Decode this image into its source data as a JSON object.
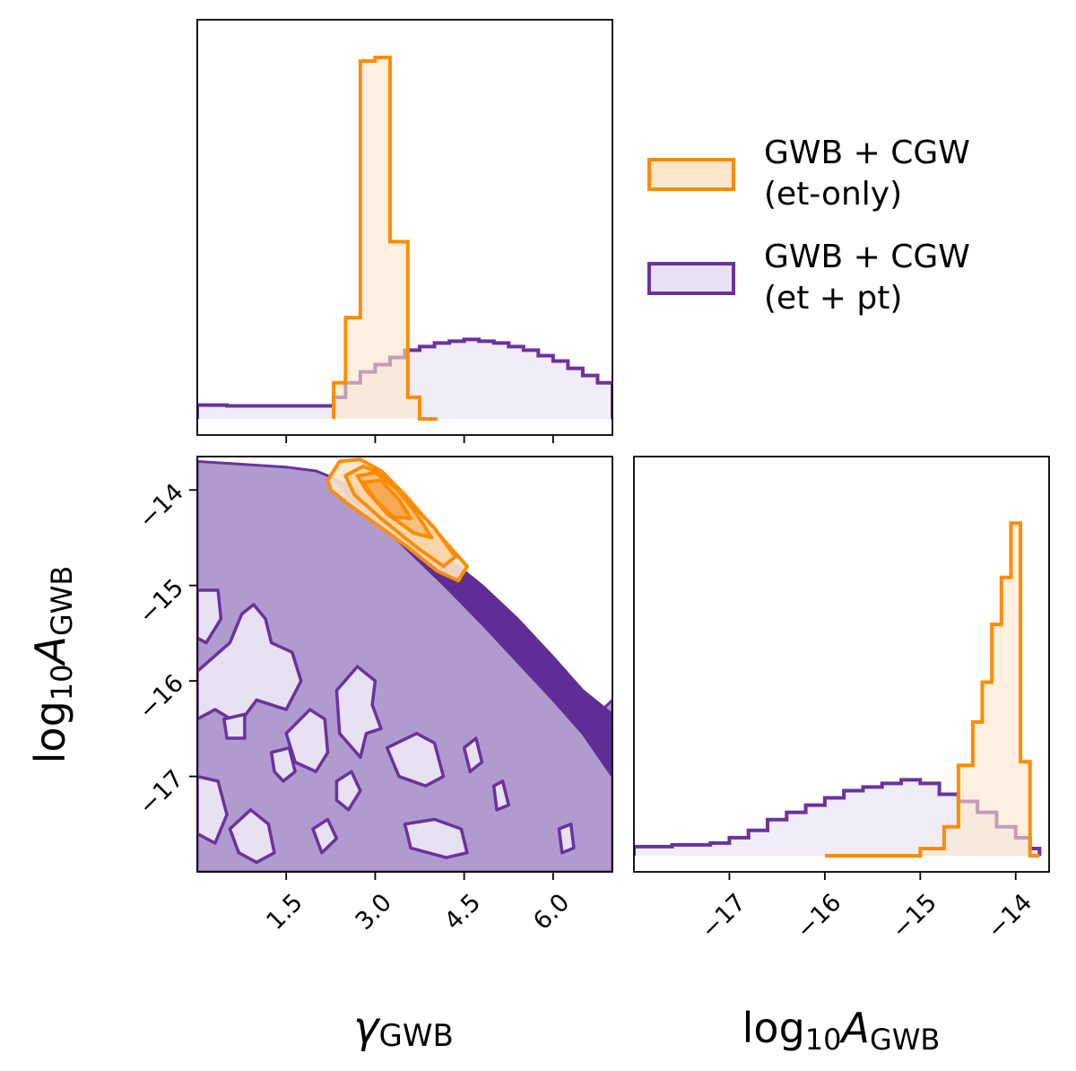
{
  "colors": {
    "orange": "#ff8c00",
    "orange_fill": "#fde6cb",
    "purple": "#6a329f",
    "purple_fill": "#e8e1f1",
    "purple_mid": "#b09bcf",
    "purple_dark": "#5e2e96"
  },
  "legend": {
    "placement": "top-right",
    "entries": [
      {
        "line1": "GWB + CGW",
        "line2": "(et-only)",
        "color": "#ff8c00"
      },
      {
        "line1": "GWB + CGW",
        "line2": "(et + pt)",
        "color": "#6a329f"
      }
    ]
  },
  "chart_data": [
    {
      "type": "bar",
      "panel": "gamma-marginal",
      "xlim": [
        0,
        7
      ],
      "x_ticks": [
        1.5,
        3.0,
        4.5,
        6.0
      ],
      "series": [
        {
          "name": "GWB + CGW (et-only)",
          "bin_edges": [
            2.3,
            2.5,
            2.75,
            3.0,
            3.25,
            3.55,
            3.75,
            4.05
          ],
          "density": [
            0.1,
            0.28,
            0.99,
            1.0,
            0.49,
            0.06,
            0.0
          ]
        },
        {
          "name": "GWB + CGW (et + pt)",
          "bin_edges": [
            0.0,
            0.5,
            1.0,
            1.5,
            2.0,
            2.3,
            2.5,
            2.75,
            3.0,
            3.25,
            3.5,
            3.75,
            4.0,
            4.25,
            4.5,
            4.75,
            5.0,
            5.25,
            5.5,
            5.75,
            6.0,
            6.25,
            6.5,
            6.75,
            7.0
          ],
          "density": [
            0.038,
            0.036,
            0.036,
            0.036,
            0.036,
            0.06,
            0.1,
            0.13,
            0.15,
            0.17,
            0.19,
            0.2,
            0.21,
            0.215,
            0.22,
            0.215,
            0.21,
            0.2,
            0.19,
            0.175,
            0.16,
            0.14,
            0.12,
            0.1
          ]
        }
      ]
    },
    {
      "type": "scatter",
      "panel": "joint-contours",
      "xlabel": "γGWB",
      "ylabel": "log10AGWB",
      "xlim": [
        0,
        7
      ],
      "ylim": [
        -18.0,
        -13.65
      ],
      "x_ticks": [
        1.5,
        3.0,
        4.5,
        6.0
      ],
      "y_ticks": [
        -14,
        -15,
        -16,
        -17
      ],
      "series": [
        {
          "name": "GWB + CGW (et-only)",
          "contours": [
            [
              [
                2.2,
                -13.9
              ],
              [
                2.4,
                -13.7
              ],
              [
                2.75,
                -13.68
              ],
              [
                3.1,
                -13.8
              ],
              [
                3.5,
                -14.05
              ],
              [
                4.05,
                -14.45
              ],
              [
                4.55,
                -14.8
              ],
              [
                4.4,
                -14.95
              ],
              [
                4.05,
                -14.85
              ],
              [
                3.55,
                -14.6
              ],
              [
                3.0,
                -14.35
              ],
              [
                2.55,
                -14.15
              ],
              [
                2.25,
                -14.0
              ]
            ],
            [
              [
                2.5,
                -13.85
              ],
              [
                2.8,
                -13.75
              ],
              [
                3.15,
                -13.85
              ],
              [
                3.55,
                -14.1
              ],
              [
                4.0,
                -14.4
              ],
              [
                4.35,
                -14.7
              ],
              [
                4.15,
                -14.8
              ],
              [
                3.7,
                -14.6
              ],
              [
                3.1,
                -14.3
              ],
              [
                2.65,
                -14.05
              ]
            ],
            [
              [
                2.7,
                -13.85
              ],
              [
                3.0,
                -13.82
              ],
              [
                3.35,
                -13.98
              ],
              [
                3.7,
                -14.25
              ],
              [
                3.95,
                -14.5
              ],
              [
                3.65,
                -14.45
              ],
              [
                3.2,
                -14.25
              ],
              [
                2.85,
                -14.0
              ]
            ],
            [
              [
                2.8,
                -13.92
              ],
              [
                3.1,
                -13.9
              ],
              [
                3.4,
                -14.1
              ],
              [
                3.6,
                -14.3
              ],
              [
                3.3,
                -14.28
              ],
              [
                3.0,
                -14.1
              ]
            ]
          ]
        },
        {
          "name": "GWB + CGW (et + pt)",
          "outer_region": [
            [
              0.0,
              -13.7
            ],
            [
              0.5,
              -13.72
            ],
            [
              1.0,
              -13.74
            ],
            [
              1.5,
              -13.76
            ],
            [
              2.0,
              -13.8
            ],
            [
              2.2,
              -13.85
            ],
            [
              2.5,
              -13.95
            ],
            [
              3.0,
              -14.2
            ],
            [
              3.5,
              -14.5
            ],
            [
              4.0,
              -14.8
            ],
            [
              4.5,
              -15.1
            ],
            [
              5.0,
              -15.4
            ],
            [
              5.5,
              -15.7
            ],
            [
              6.0,
              -16.0
            ],
            [
              6.5,
              -16.5
            ],
            [
              7.0,
              -16.2
            ],
            [
              7.0,
              -18.0
            ],
            [
              0.0,
              -18.0
            ]
          ],
          "ridge": [
            [
              2.3,
              -13.88
            ],
            [
              3.0,
              -14.1
            ],
            [
              3.6,
              -14.38
            ],
            [
              4.2,
              -14.7
            ],
            [
              4.8,
              -15.0
            ],
            [
              5.4,
              -15.35
            ],
            [
              6.0,
              -15.75
            ],
            [
              6.5,
              -16.1
            ],
            [
              7.0,
              -16.35
            ],
            [
              7.0,
              -17.0
            ],
            [
              6.5,
              -16.55
            ],
            [
              6.0,
              -16.2
            ],
            [
              5.4,
              -15.8
            ],
            [
              4.8,
              -15.4
            ],
            [
              4.2,
              -15.02
            ],
            [
              3.7,
              -14.72
            ],
            [
              3.2,
              -14.42
            ],
            [
              2.6,
              -14.1
            ]
          ],
          "islands": [
            [
              [
                0.0,
                -15.05
              ],
              [
                0.35,
                -15.05
              ],
              [
                0.4,
                -15.35
              ],
              [
                0.15,
                -15.6
              ],
              [
                0.0,
                -15.55
              ]
            ],
            [
              [
                0.0,
                -15.9
              ],
              [
                0.55,
                -15.6
              ],
              [
                0.75,
                -15.3
              ],
              [
                0.95,
                -15.2
              ],
              [
                1.15,
                -15.35
              ],
              [
                1.25,
                -15.6
              ],
              [
                1.6,
                -15.7
              ],
              [
                1.75,
                -16.0
              ],
              [
                1.5,
                -16.3
              ],
              [
                1.0,
                -16.2
              ],
              [
                0.7,
                -16.45
              ],
              [
                0.3,
                -16.3
              ],
              [
                0.0,
                -16.4
              ]
            ],
            [
              [
                1.5,
                -16.55
              ],
              [
                1.9,
                -16.3
              ],
              [
                2.15,
                -16.4
              ],
              [
                2.2,
                -16.75
              ],
              [
                2.0,
                -16.95
              ],
              [
                1.65,
                -16.85
              ]
            ],
            [
              [
                2.35,
                -16.1
              ],
              [
                2.7,
                -15.85
              ],
              [
                3.0,
                -16.0
              ],
              [
                2.95,
                -16.25
              ],
              [
                3.1,
                -16.5
              ],
              [
                2.85,
                -16.55
              ],
              [
                2.75,
                -16.8
              ],
              [
                2.4,
                -16.55
              ]
            ],
            [
              [
                3.2,
                -16.7
              ],
              [
                3.7,
                -16.55
              ],
              [
                4.0,
                -16.65
              ],
              [
                4.15,
                -17.0
              ],
              [
                3.85,
                -17.1
              ],
              [
                3.4,
                -17.0
              ]
            ],
            [
              [
                3.5,
                -17.5
              ],
              [
                4.0,
                -17.45
              ],
              [
                4.45,
                -17.55
              ],
              [
                4.55,
                -17.8
              ],
              [
                4.2,
                -17.85
              ],
              [
                3.6,
                -17.75
              ]
            ],
            [
              [
                0.0,
                -17.0
              ],
              [
                0.35,
                -17.05
              ],
              [
                0.5,
                -17.4
              ],
              [
                0.3,
                -17.7
              ],
              [
                0.0,
                -17.6
              ]
            ],
            [
              [
                0.55,
                -17.55
              ],
              [
                0.9,
                -17.35
              ],
              [
                1.2,
                -17.5
              ],
              [
                1.3,
                -17.8
              ],
              [
                1.0,
                -17.9
              ],
              [
                0.7,
                -17.8
              ]
            ],
            [
              [
                1.25,
                -16.75
              ],
              [
                1.55,
                -16.7
              ],
              [
                1.65,
                -16.95
              ],
              [
                1.45,
                -17.05
              ],
              [
                1.3,
                -16.95
              ]
            ],
            [
              [
                0.45,
                -16.4
              ],
              [
                0.8,
                -16.35
              ],
              [
                0.8,
                -16.6
              ],
              [
                0.5,
                -16.6
              ]
            ],
            [
              [
                2.35,
                -17.05
              ],
              [
                2.6,
                -16.95
              ],
              [
                2.75,
                -17.15
              ],
              [
                2.55,
                -17.35
              ],
              [
                2.35,
                -17.25
              ]
            ],
            [
              [
                1.95,
                -17.55
              ],
              [
                2.2,
                -17.45
              ],
              [
                2.35,
                -17.65
              ],
              [
                2.1,
                -17.8
              ]
            ],
            [
              [
                4.5,
                -16.7
              ],
              [
                4.7,
                -16.6
              ],
              [
                4.8,
                -16.85
              ],
              [
                4.6,
                -16.95
              ]
            ],
            [
              [
                5.0,
                -17.1
              ],
              [
                5.15,
                -17.05
              ],
              [
                5.25,
                -17.3
              ],
              [
                5.05,
                -17.35
              ]
            ],
            [
              [
                6.1,
                -17.55
              ],
              [
                6.3,
                -17.5
              ],
              [
                6.35,
                -17.75
              ],
              [
                6.15,
                -17.8
              ]
            ]
          ]
        }
      ]
    },
    {
      "type": "bar",
      "panel": "amplitude-marginal",
      "xlim": [
        -18.0,
        -13.65
      ],
      "x_ticks": [
        -17,
        -16,
        -15,
        -14
      ],
      "series": [
        {
          "name": "GWB + CGW (et-only)",
          "bin_edges": [
            -16.0,
            -15.0,
            -14.75,
            -14.6,
            -14.45,
            -14.35,
            -14.25,
            -14.15,
            -14.05,
            -13.95,
            -13.85,
            -13.75
          ],
          "density": [
            0.0,
            0.02,
            0.08,
            0.25,
            0.37,
            0.48,
            0.64,
            0.77,
            0.92,
            0.26,
            0.0
          ]
        },
        {
          "name": "GWB + CGW (et + pt)",
          "bin_edges": [
            -18.0,
            -17.6,
            -17.4,
            -17.2,
            -17.0,
            -16.8,
            -16.6,
            -16.4,
            -16.2,
            -16.0,
            -15.8,
            -15.6,
            -15.4,
            -15.2,
            -15.0,
            -14.8,
            -14.6,
            -14.4,
            -14.2,
            -14.0,
            -13.85,
            -13.75
          ],
          "density": [
            0.025,
            0.03,
            0.03,
            0.035,
            0.05,
            0.07,
            0.1,
            0.12,
            0.14,
            0.16,
            0.18,
            0.19,
            0.2,
            0.21,
            0.2,
            0.17,
            0.15,
            0.12,
            0.08,
            0.05,
            0.02
          ]
        }
      ]
    }
  ]
}
